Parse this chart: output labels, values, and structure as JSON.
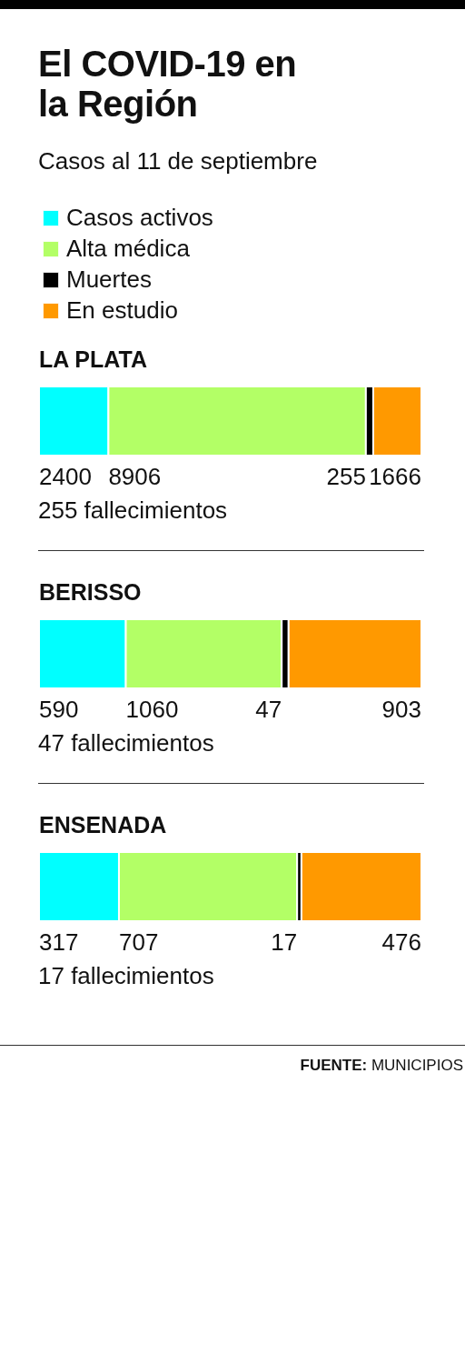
{
  "chart_data": [
    {
      "type": "other",
      "title": "El COVID-19 en la Región",
      "subtitle": "Casos al 11 de septiembre"
    },
    {
      "type": "bar",
      "title": "LA PLATA",
      "orientation": "horizontal",
      "stacked": true,
      "categories": [
        null
      ],
      "tick_labels": false,
      "data_labels": true,
      "legend": "top left",
      "series": [
        {
          "name": "Casos activos",
          "color": "#00ffff",
          "values": [
            2400
          ]
        },
        {
          "name": "Alta médica",
          "color": "#b3ff66",
          "values": [
            8906
          ]
        },
        {
          "name": "Muertes",
          "color": "#000000",
          "values": [
            255
          ]
        },
        {
          "name": "En estudio",
          "color": "#ff9900",
          "values": [
            1666
          ]
        }
      ],
      "annotations": [
        "255 fallecimientos"
      ]
    },
    {
      "type": "bar",
      "title": "BERISSO",
      "orientation": "horizontal",
      "stacked": true,
      "categories": [
        null
      ],
      "tick_labels": false,
      "data_labels": true,
      "series": [
        {
          "color": "#00ffff",
          "values": [
            590
          ]
        },
        {
          "color": "#b3ff66",
          "values": [
            1060
          ]
        },
        {
          "color": "#000000",
          "values": [
            47
          ]
        },
        {
          "color": "#ff9900",
          "values": [
            903
          ]
        }
      ],
      "annotations": [
        "47 fallecimientos"
      ]
    },
    {
      "type": "bar",
      "title": "ENSENADA",
      "orientation": "horizontal",
      "stacked": true,
      "categories": [
        null
      ],
      "tick_labels": false,
      "data_labels": true,
      "series": [
        {
          "color": "#00ffff",
          "values": [
            317
          ]
        },
        {
          "color": "#b3ff66",
          "values": [
            707
          ]
        },
        {
          "color": "#000000",
          "values": [
            17
          ]
        },
        {
          "color": "#ff9900",
          "values": [
            476
          ]
        }
      ],
      "annotations": [
        "17 fallecimientos",
        "FUENTE: MUNICIPIOS"
      ]
    }
  ]
}
